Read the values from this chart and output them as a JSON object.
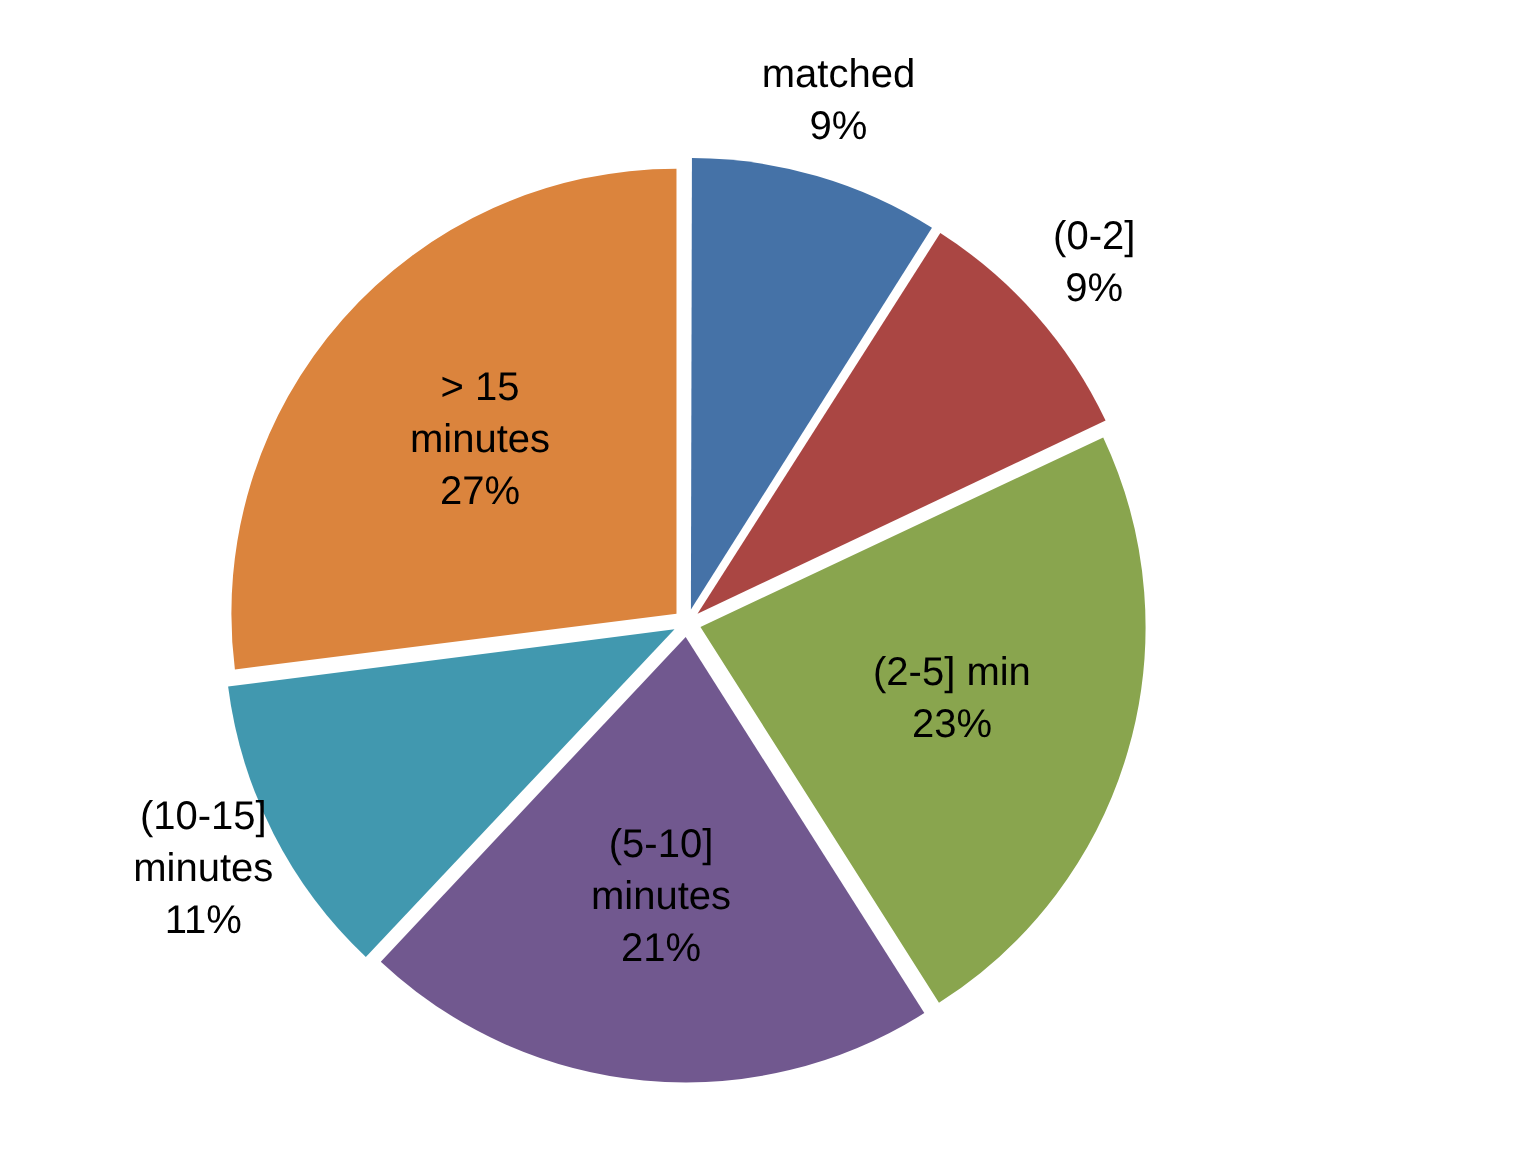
{
  "chart_data": {
    "type": "pie",
    "categories": [
      "matched",
      "(0-2]",
      "(2-5] min",
      "(5-10] minutes",
      "(10-15] minutes",
      "> 15 minutes"
    ],
    "values": [
      9,
      9,
      23,
      21,
      11,
      27
    ],
    "colors": [
      "#4572a7",
      "#aa4643",
      "#89a54e",
      "#71588f",
      "#4198af",
      "#db843d"
    ],
    "value_labels": [
      "9%",
      "9%",
      "23%",
      "21%",
      "11%",
      "27%"
    ],
    "legend": false
  }
}
